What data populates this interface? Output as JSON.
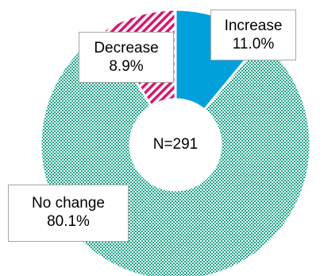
{
  "chart_data": {
    "type": "pie",
    "donut": true,
    "center_text": "N=291",
    "slices": [
      {
        "label": "Increase",
        "value_text": "11.0%",
        "value": 11.0,
        "color": "#00a0dc",
        "pattern": "solid"
      },
      {
        "label": "No change",
        "value_text": "80.1%",
        "value": 80.1,
        "color": "#1aa689",
        "pattern": "dotted"
      },
      {
        "label": "Decrease",
        "value_text": "8.9%",
        "value": 8.9,
        "color": "#d6186e",
        "pattern": "diagonal-stripes"
      }
    ],
    "start_angle": "12 o'clock",
    "direction": "clockwise"
  }
}
